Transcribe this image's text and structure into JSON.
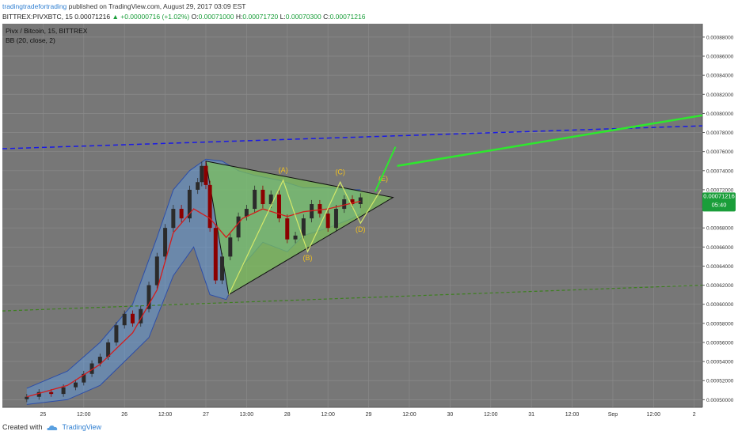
{
  "header": {
    "author": "tradingtradefortrading",
    "published_text": "published on TradingView.com, August 29, 2017 03:09 EST",
    "symbol": "BITTREX:PIVXBTC, 15",
    "last": "0.00071216",
    "change": "▲ +0.00000716 (+1.02%)",
    "open_label": "O:",
    "open": "0.00071000",
    "high_label": "H:",
    "high": "0.00071720",
    "low_label": "L:",
    "low": "0.00070300",
    "close_label": "C:",
    "close": "0.00071216"
  },
  "legend": {
    "title": "Pivx / Bitcoin, 15, BITTREX",
    "indicator": "BB (20, close, 2)"
  },
  "price_tag": {
    "value": "0.00071216",
    "countdown": "05:40"
  },
  "footer": {
    "created_with": "Created with",
    "brand": "TradingView"
  },
  "wave_labels": [
    "(A)",
    "(B)",
    "(C)",
    "(D)",
    "(E)"
  ],
  "colors": {
    "background": "#777777",
    "grid": "#8a8a8a",
    "candle_up": "#2b2b2b",
    "candle_down": "#8b0000",
    "bb_band": "#2d4ea8",
    "bb_fill": "#5d9de8",
    "bb_basis": "#d41c1c",
    "triangle_fill": "#7cc55a",
    "triangle_line": "#111111",
    "wave_line": "#d4e86a",
    "wave_label": "#f0c020",
    "blue_dashed": "#1a1ae6",
    "green_dashed": "#3d7f1f",
    "projection": "#2ee82e",
    "price_tag": "#1a9e3a"
  },
  "chart_data": {
    "type": "candlestick",
    "title": "Pivx / Bitcoin, 15, BITTREX",
    "y_ticks": [
      "0.00088000",
      "0.00086000",
      "0.00084000",
      "0.00082000",
      "0.00080000",
      "0.00078000",
      "0.00076000",
      "0.00074000",
      "0.00072000",
      "0.00070000",
      "0.00068000",
      "0.00066000",
      "0.00064000",
      "0.00062000",
      "0.00060000",
      "0.00058000",
      "0.00056000",
      "0.00054000",
      "0.00052000",
      "0.00050000"
    ],
    "x_ticks": [
      "25",
      "12:00",
      "26",
      "12:00",
      "27",
      "13:00",
      "28",
      "12:00",
      "29",
      "12:00",
      "30",
      "12:00",
      "31",
      "12:00",
      "Sep",
      "12:00",
      "2"
    ],
    "ylim": [
      0.000492,
      0.000894
    ],
    "x_range_days": [
      0,
      8.6
    ],
    "close_series": [
      [
        0.3,
        0.000503
      ],
      [
        0.45,
        0.000508
      ],
      [
        0.6,
        0.000506
      ],
      [
        0.75,
        0.000513
      ],
      [
        0.9,
        0.000518
      ],
      [
        1.0,
        0.000527
      ],
      [
        1.1,
        0.000538
      ],
      [
        1.2,
        0.000545
      ],
      [
        1.3,
        0.00056
      ],
      [
        1.4,
        0.000578
      ],
      [
        1.5,
        0.00059
      ],
      [
        1.6,
        0.00058
      ],
      [
        1.7,
        0.000595
      ],
      [
        1.8,
        0.00062
      ],
      [
        1.9,
        0.00065
      ],
      [
        2.0,
        0.00068
      ],
      [
        2.1,
        0.0007
      ],
      [
        2.2,
        0.00069
      ],
      [
        2.3,
        0.00072
      ],
      [
        2.4,
        0.000728
      ],
      [
        2.45,
        0.000745
      ],
      [
        2.5,
        0.000725
      ],
      [
        2.55,
        0.00068
      ],
      [
        2.62,
        0.000625
      ],
      [
        2.7,
        0.00065
      ],
      [
        2.8,
        0.00067
      ],
      [
        2.9,
        0.000692
      ],
      [
        3.0,
        0.0007
      ],
      [
        3.1,
        0.00072
      ],
      [
        3.2,
        0.000705
      ],
      [
        3.3,
        0.000715
      ],
      [
        3.4,
        0.00069
      ],
      [
        3.5,
        0.000668
      ],
      [
        3.6,
        0.000672
      ],
      [
        3.7,
        0.00069
      ],
      [
        3.8,
        0.000705
      ],
      [
        3.9,
        0.000695
      ],
      [
        4.0,
        0.00068
      ],
      [
        4.1,
        0.0007
      ],
      [
        4.2,
        0.00071
      ],
      [
        4.3,
        0.000705
      ],
      [
        4.4,
        0.000712
      ]
    ],
    "bb_upper": [
      [
        0.3,
        0.000512
      ],
      [
        0.8,
        0.00053
      ],
      [
        1.2,
        0.00056
      ],
      [
        1.6,
        0.0006
      ],
      [
        1.9,
        0.00067
      ],
      [
        2.1,
        0.00072
      ],
      [
        2.3,
        0.00074
      ],
      [
        2.5,
        0.000752
      ],
      [
        2.7,
        0.00075
      ],
      [
        2.9,
        0.00074
      ],
      [
        3.1,
        0.000735
      ],
      [
        3.4,
        0.00073
      ],
      [
        3.7,
        0.000722
      ],
      [
        4.0,
        0.000722
      ],
      [
        4.3,
        0.00072
      ],
      [
        4.4,
        0.00072
      ]
    ],
    "bb_lower": [
      [
        0.3,
        0.000495
      ],
      [
        0.8,
        0.0005
      ],
      [
        1.2,
        0.000515
      ],
      [
        1.5,
        0.00054
      ],
      [
        1.8,
        0.000565
      ],
      [
        2.1,
        0.00063
      ],
      [
        2.35,
        0.00066
      ],
      [
        2.55,
        0.00061
      ],
      [
        2.75,
        0.000605
      ],
      [
        2.95,
        0.00064
      ],
      [
        3.2,
        0.000665
      ],
      [
        3.5,
        0.000655
      ],
      [
        3.7,
        0.000672
      ],
      [
        4.0,
        0.00068
      ],
      [
        4.3,
        0.00069
      ],
      [
        4.4,
        0.000695
      ]
    ],
    "bb_basis": [
      [
        0.3,
        0.000503
      ],
      [
        0.8,
        0.000515
      ],
      [
        1.2,
        0.000537
      ],
      [
        1.6,
        0.00057
      ],
      [
        1.9,
        0.000615
      ],
      [
        2.1,
        0.000675
      ],
      [
        2.35,
        0.0007
      ],
      [
        2.55,
        0.00069
      ],
      [
        2.75,
        0.00067
      ],
      [
        2.95,
        0.00069
      ],
      [
        3.2,
        0.0007
      ],
      [
        3.5,
        0.000692
      ],
      [
        3.7,
        0.000697
      ],
      [
        4.0,
        0.0007
      ],
      [
        4.3,
        0.000706
      ],
      [
        4.4,
        0.000708
      ]
    ],
    "triangle": [
      [
        2.5,
        0.00075
      ],
      [
        4.8,
        0.000712
      ],
      [
        2.78,
        0.00061
      ]
    ],
    "waves": [
      [
        2.78,
        0.00061
      ],
      [
        3.45,
        0.00073
      ],
      [
        3.75,
        0.000655
      ],
      [
        4.15,
        0.000728
      ],
      [
        4.4,
        0.000685
      ],
      [
        4.65,
        0.00072
      ]
    ],
    "wave_label_points": [
      [
        3.45,
        0.000738
      ],
      [
        3.75,
        0.000646
      ],
      [
        4.15,
        0.000736
      ],
      [
        4.4,
        0.000676
      ],
      [
        4.68,
        0.000729
      ]
    ],
    "blue_dashed_line": [
      [
        0.0,
        0.000763
      ],
      [
        8.6,
        0.000787
      ]
    ],
    "green_dashed_line": [
      [
        0.0,
        0.000593
      ],
      [
        8.6,
        0.00062
      ]
    ],
    "projection_short": [
      [
        4.58,
        0.000718
      ],
      [
        4.83,
        0.000765
      ]
    ],
    "projection_long": [
      [
        4.85,
        0.000745
      ],
      [
        8.6,
        0.000798
      ]
    ]
  }
}
